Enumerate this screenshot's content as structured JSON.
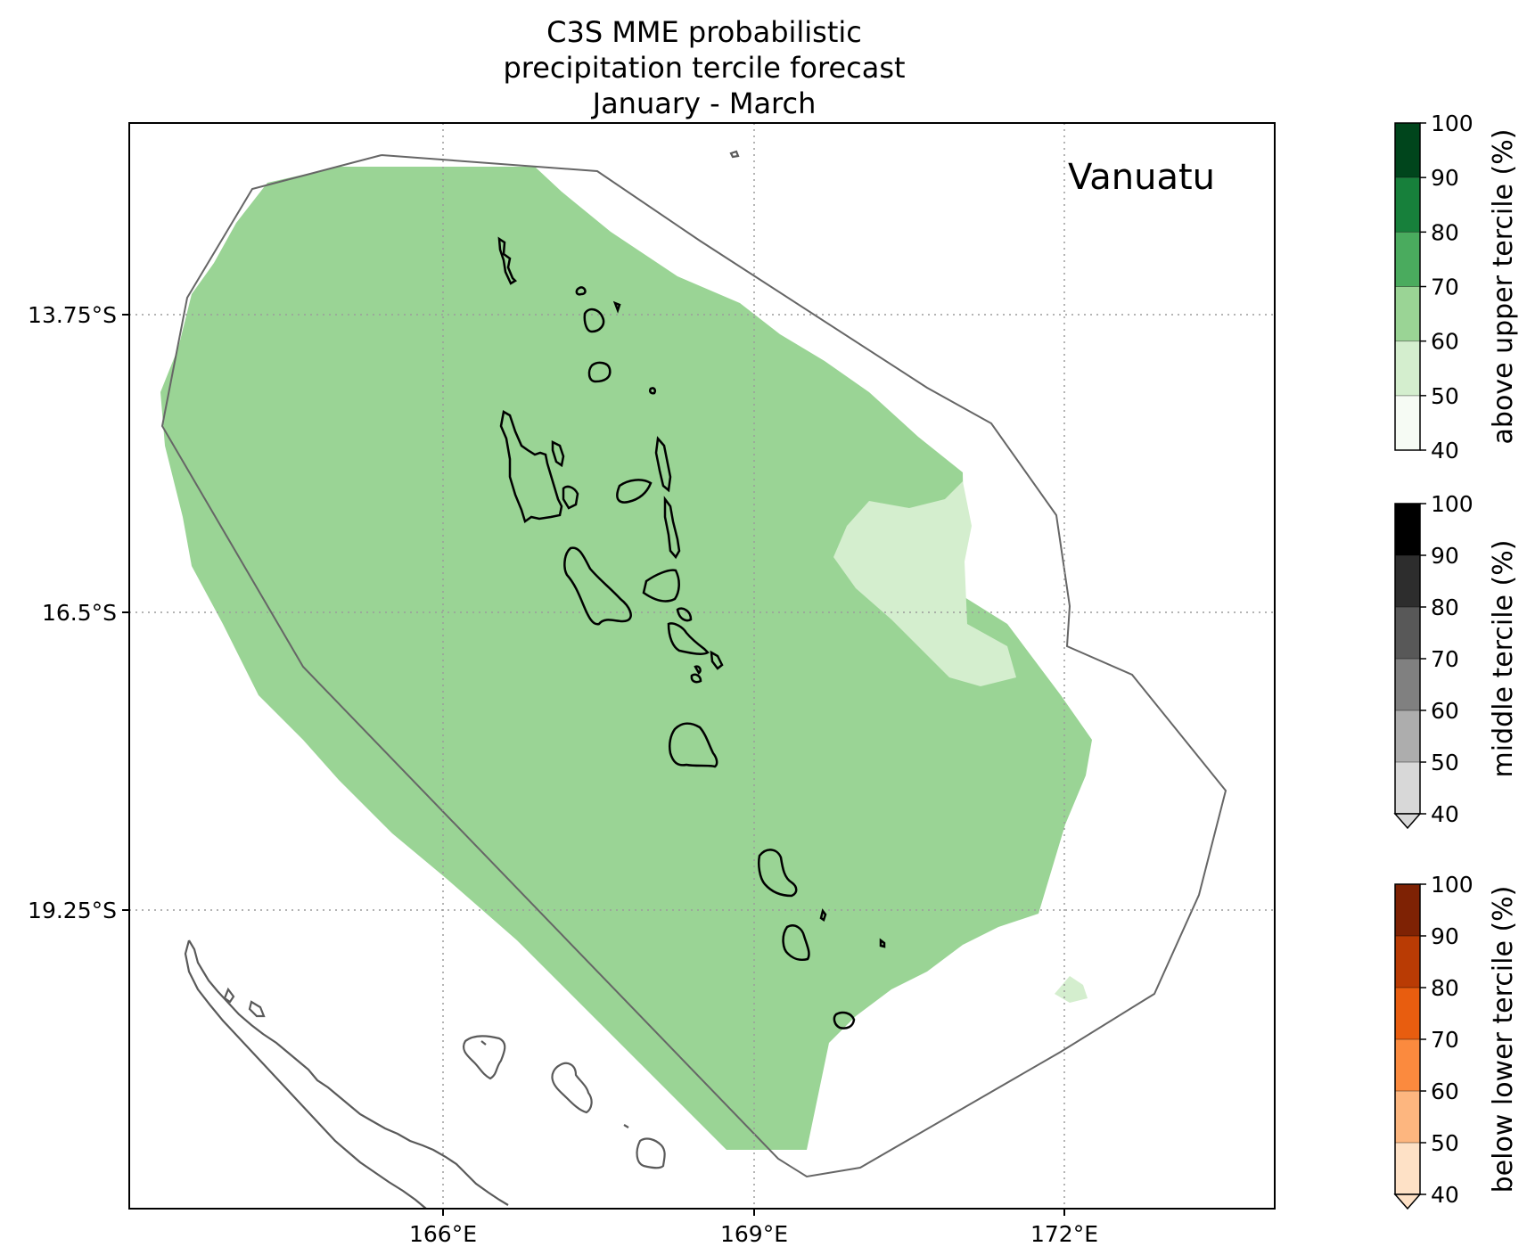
{
  "title": {
    "line1": "C3S MME probabilistic",
    "line2": "precipitation tercile forecast",
    "line3": "January - March"
  },
  "map": {
    "region_label": "Vanuatu",
    "lat_ticks": [
      "13.75°S",
      "16.5°S",
      "19.25°S"
    ],
    "lon_ticks": [
      "166°E",
      "169°E",
      "172°E"
    ],
    "gridlines": true,
    "fill_colors": {
      "above_60_70": "#9ad495",
      "above_50_60": "#d4eece"
    }
  },
  "colorbars": [
    {
      "label": "above upper tercile (%)",
      "ticks": [
        "40",
        "50",
        "60",
        "70",
        "80",
        "90",
        "100"
      ],
      "colors": [
        "#f6fbf4",
        "#d4eece",
        "#9ad495",
        "#4aab5e",
        "#17803b",
        "#00451c"
      ],
      "extend_min": false
    },
    {
      "label": "middle tercile (%)",
      "ticks": [
        "40",
        "50",
        "60",
        "70",
        "80",
        "90",
        "100"
      ],
      "colors": [
        "#d8d8d8",
        "#adadad",
        "#808080",
        "#585858",
        "#2d2d2d",
        "#000000"
      ],
      "extend_min": true
    },
    {
      "label": "below lower tercile (%)",
      "ticks": [
        "40",
        "50",
        "60",
        "70",
        "80",
        "90",
        "100"
      ],
      "colors": [
        "#fee1c6",
        "#fdb67f",
        "#fb8a3e",
        "#e85d0f",
        "#b93b04",
        "#7e2204"
      ],
      "extend_min": true
    }
  ]
}
